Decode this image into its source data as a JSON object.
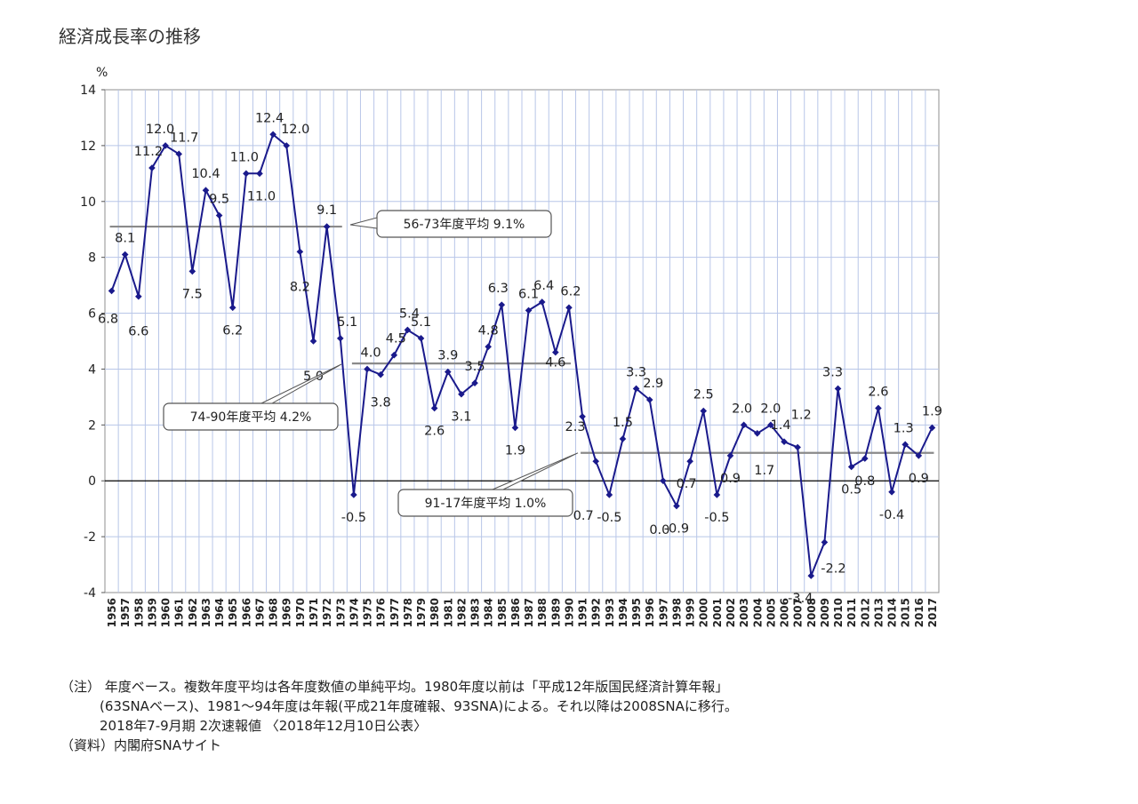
{
  "title": "経済成長率の推移",
  "chart_data": {
    "type": "line",
    "title": "経済成長率の推移",
    "ylabel": "%",
    "xlabel": "",
    "ylim": [
      -4,
      14
    ],
    "yticks": [
      -4,
      -2,
      0,
      2,
      4,
      6,
      8,
      10,
      12,
      14
    ],
    "grid": true,
    "categories": [
      "1956",
      "1957",
      "1958",
      "1959",
      "1960",
      "1961",
      "1962",
      "1963",
      "1964",
      "1965",
      "1966",
      "1967",
      "1968",
      "1969",
      "1970",
      "1971",
      "1972",
      "1973",
      "1974",
      "1975",
      "1976",
      "1977",
      "1978",
      "1979",
      "1980",
      "1981",
      "1982",
      "1983",
      "1984",
      "1985",
      "1986",
      "1987",
      "1988",
      "1989",
      "1990",
      "1991",
      "1992",
      "1993",
      "1994",
      "1995",
      "1996",
      "1997",
      "1998",
      "1999",
      "2000",
      "2001",
      "2002",
      "2003",
      "2004",
      "2005",
      "2006",
      "2007",
      "2008",
      "2009",
      "2010",
      "2011",
      "2012",
      "2013",
      "2014",
      "2015",
      "2016",
      "2017"
    ],
    "series": [
      {
        "name": "経済成長率",
        "color": "#1a1a8c",
        "values": [
          6.8,
          8.1,
          6.6,
          11.2,
          12.0,
          11.7,
          7.5,
          10.4,
          9.5,
          6.2,
          11.0,
          11.0,
          12.4,
          12.0,
          8.2,
          5.0,
          9.1,
          5.1,
          -0.5,
          4.0,
          3.8,
          4.5,
          5.4,
          5.1,
          2.6,
          3.9,
          3.1,
          3.5,
          4.8,
          6.3,
          1.9,
          6.1,
          6.4,
          4.6,
          6.2,
          2.3,
          0.7,
          -0.5,
          1.5,
          3.3,
          2.9,
          0.0,
          -0.9,
          0.7,
          2.5,
          -0.5,
          0.9,
          2.0,
          1.7,
          2.0,
          1.4,
          1.2,
          -3.4,
          -2.2,
          3.3,
          0.5,
          0.8,
          2.6,
          -0.4,
          1.3,
          0.9,
          1.9
        ]
      }
    ],
    "data_labels": [
      "6.8",
      "8.1",
      "6.6",
      "11.2",
      "12.0",
      "11.7",
      "7.5",
      "10.4",
      "9.5",
      "6.2",
      "11.0",
      "11.0",
      "12.4",
      "12.0",
      "8.2",
      "5.0",
      "9.1",
      "5.1",
      "-0.5",
      "4.0",
      "3.8",
      "4.5",
      "5.4",
      "5.1",
      "2.6",
      "3.9",
      "3.1",
      "3.5",
      "4.8",
      "6.3",
      "1.9",
      "6.1",
      "6.4",
      "4.6",
      "6.2",
      "2.3",
      "0.7",
      "-0.5",
      "1.5",
      "3.3",
      "2.9",
      "0.0",
      "-0.9",
      "0.7",
      "2.5",
      "-0.5",
      "0.9",
      "2.0",
      "1.7",
      "2.0",
      "1.4",
      "1.2",
      "-3.4",
      "-2.2",
      "3.3",
      "0.5",
      "0.8",
      "2.6",
      "-0.4",
      "1.3",
      "0.9",
      "1.9"
    ],
    "averages": [
      {
        "label": "56-73年度平均 9.1%",
        "value": 9.1,
        "from": "1956",
        "to": "1973"
      },
      {
        "label": "74-90年度平均 4.2%",
        "value": 4.2,
        "from": "1974",
        "to": "1990"
      },
      {
        "label": "91-17年度平均 1.0%",
        "value": 1.0,
        "from": "1991",
        "to": "2017"
      }
    ]
  },
  "notes": {
    "line1": "（注）  年度ベース。複数年度平均は各年度数値の単純平均。1980年度以前は「平成12年版国民経済計算年報」",
    "line2": "(63SNAベース)、1981～94年度は年報(平成21年度確報、93SNA)による。それ以降は2008SNAに移行。",
    "line3": "2018年7-9月期 2次速報値 〈2018年12月10日公表〉",
    "line4": "（資料）内閣府SNAサイト"
  }
}
